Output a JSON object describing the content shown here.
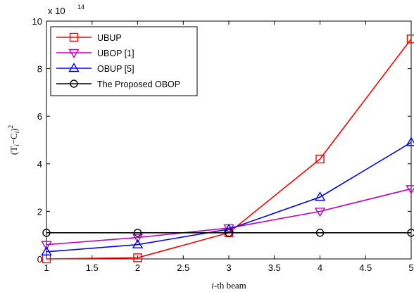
{
  "chart_data": {
    "type": "line",
    "title": "",
    "xlabel_italic": "i",
    "xlabel_rest": "-th beam",
    "ylabel": "(T_i − C_i)^2",
    "ylabel_base": "(T",
    "ylabel_sub1": "i",
    "ylabel_mid": "−C",
    "ylabel_sub2": "i",
    "ylabel_close": ")",
    "ylabel_sup": "2",
    "exponent_label": "x 10",
    "exponent_power": "14",
    "xlim": [
      1,
      5
    ],
    "ylim": [
      0,
      10
    ],
    "x_ticks": [
      "1",
      "1.5",
      "2",
      "2.5",
      "3",
      "3.5",
      "4",
      "4.5",
      "5"
    ],
    "y_ticks": [
      "0",
      "2",
      "4",
      "6",
      "8",
      "10"
    ],
    "x": [
      1,
      2,
      3,
      4,
      5
    ],
    "grid": false,
    "legend_position": "top-left",
    "series": [
      {
        "name": "UBUP",
        "color": "#ff0000",
        "marker": "square",
        "values": [
          0.0,
          0.05,
          1.1,
          4.2,
          9.25
        ]
      },
      {
        "name": "UBOP [1]",
        "color": "#bf00bf",
        "marker": "triangle-down",
        "values": [
          0.6,
          0.9,
          1.3,
          2.0,
          2.95
        ]
      },
      {
        "name": "OBUP [5]",
        "color": "#0000ff",
        "marker": "triangle-up",
        "values": [
          0.3,
          0.6,
          1.25,
          2.6,
          4.9
        ]
      },
      {
        "name": "The Proposed OBOP",
        "color": "#000000",
        "marker": "circle",
        "values": [
          1.1,
          1.1,
          1.1,
          1.1,
          1.1
        ]
      }
    ]
  }
}
